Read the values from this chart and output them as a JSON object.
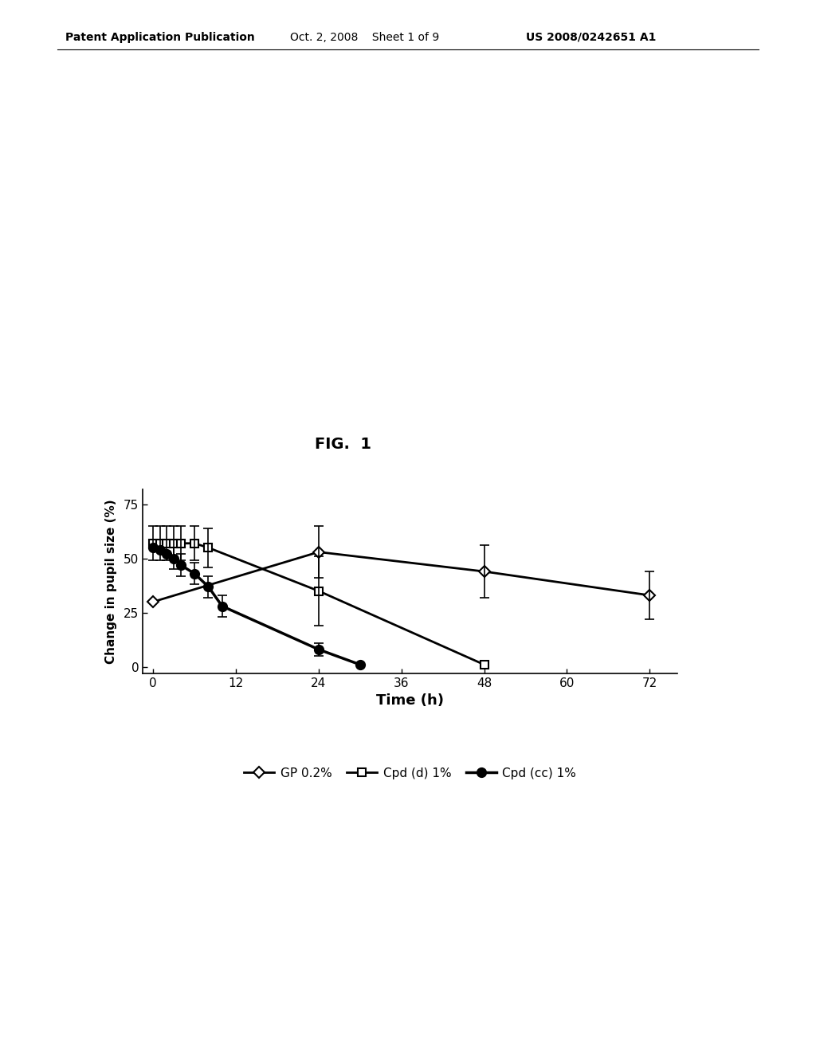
{
  "title": "FIG.  1",
  "xlabel": "Time (h)",
  "ylabel": "Change in pupil size (%)",
  "xlim": [
    -1.5,
    76
  ],
  "ylim": [
    -3,
    82
  ],
  "xticks": [
    0,
    12,
    24,
    36,
    48,
    60,
    72
  ],
  "yticks": [
    0,
    25,
    50,
    75
  ],
  "series": [
    {
      "label": "GP 0.2%",
      "x": [
        0,
        24,
        48,
        72
      ],
      "y": [
        30,
        53,
        44,
        33
      ],
      "yerr": [
        null,
        12,
        12,
        11
      ],
      "marker": "D",
      "marker_size": 7,
      "marker_facecolor": "white",
      "marker_edgecolor": "black",
      "linewidth": 2.0,
      "color": "black"
    },
    {
      "label": "Cpd (d) 1%",
      "x": [
        0,
        1,
        2,
        3,
        4,
        6,
        8,
        24,
        48
      ],
      "y": [
        57,
        57,
        57,
        57,
        57,
        57,
        55,
        35,
        1
      ],
      "yerr": [
        8,
        8,
        8,
        8,
        8,
        8,
        9,
        16,
        null
      ],
      "marker": "s",
      "marker_size": 7,
      "marker_facecolor": "white",
      "marker_edgecolor": "black",
      "linewidth": 2.0,
      "color": "black"
    },
    {
      "label": "Cpd (cc) 1%",
      "x": [
        0,
        1,
        2,
        3,
        4,
        6,
        8,
        10,
        24,
        30
      ],
      "y": [
        55,
        54,
        52,
        50,
        47,
        43,
        37,
        28,
        8,
        1
      ],
      "yerr": [
        null,
        null,
        null,
        5,
        5,
        5,
        5,
        5,
        3,
        null
      ],
      "marker": "o",
      "marker_size": 8,
      "marker_facecolor": "black",
      "marker_edgecolor": "black",
      "linewidth": 2.5,
      "color": "black"
    }
  ],
  "background_color": "white",
  "header_left": "Patent Application Publication",
  "header_center": "Oct. 2, 2008    Sheet 1 of 9",
  "header_right": "US 2008/0242651 A1",
  "fig_label": "FIG.  1",
  "header_left_bold": true,
  "header_right_bold": true,
  "fig_label_fontsize": 14,
  "header_fontsize": 10,
  "xlabel_fontsize": 13,
  "ylabel_fontsize": 11,
  "tick_labelsize": 11,
  "legend_fontsize": 11
}
